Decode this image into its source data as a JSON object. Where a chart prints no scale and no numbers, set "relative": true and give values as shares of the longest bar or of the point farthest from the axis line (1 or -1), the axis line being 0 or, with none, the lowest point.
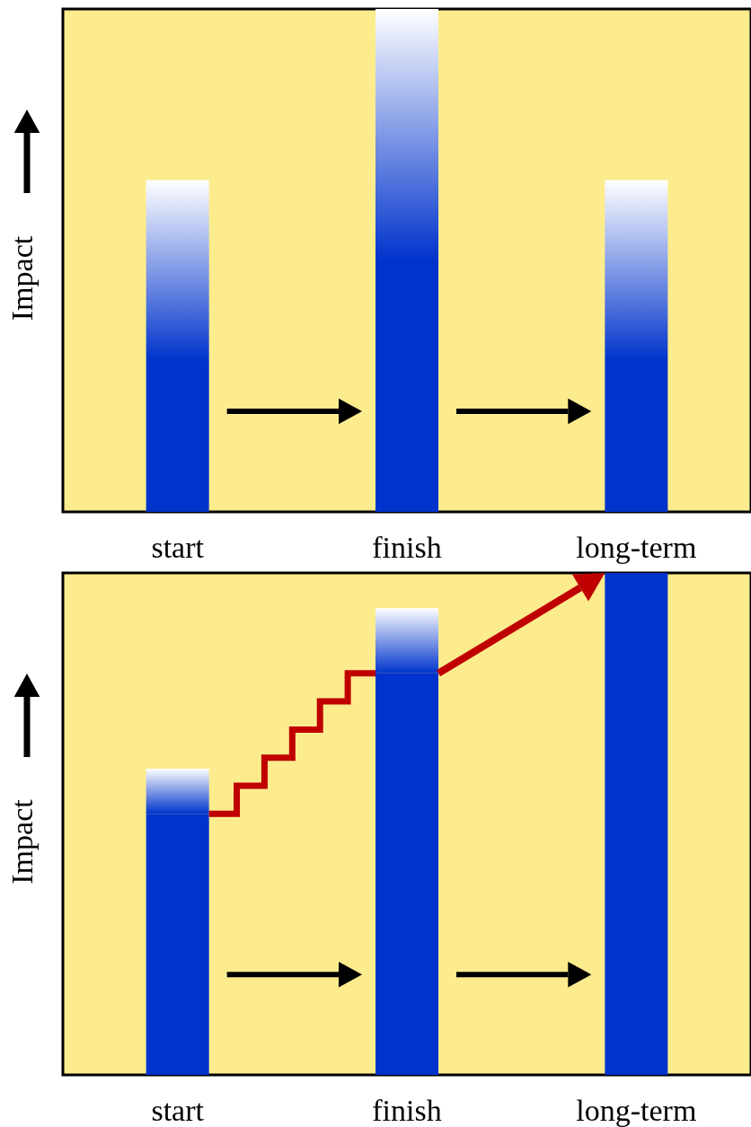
{
  "chart_data": [
    {
      "type": "bar",
      "relative": true,
      "stacked": true,
      "ylabel": "Impact",
      "categories": [
        "start",
        "finish",
        "long-term"
      ],
      "series": [
        {
          "color": "#0033cc",
          "values": [
            0.3,
            0.5,
            0.3
          ]
        },
        {
          "color": "#ffffff",
          "values": [
            0.36,
            0.5,
            0.36
          ]
        }
      ]
    },
    {
      "type": "bar",
      "relative": true,
      "stacked": true,
      "ylabel": "Impact",
      "categories": [
        "start",
        "finish",
        "long-term"
      ],
      "series": [
        {
          "color": "#0033cc",
          "values": [
            0.52,
            0.8,
            1
          ]
        },
        {
          "color": "#ffffff",
          "values": [
            0.09,
            0.13,
            null
          ]
        }
      ]
    }
  ]
}
